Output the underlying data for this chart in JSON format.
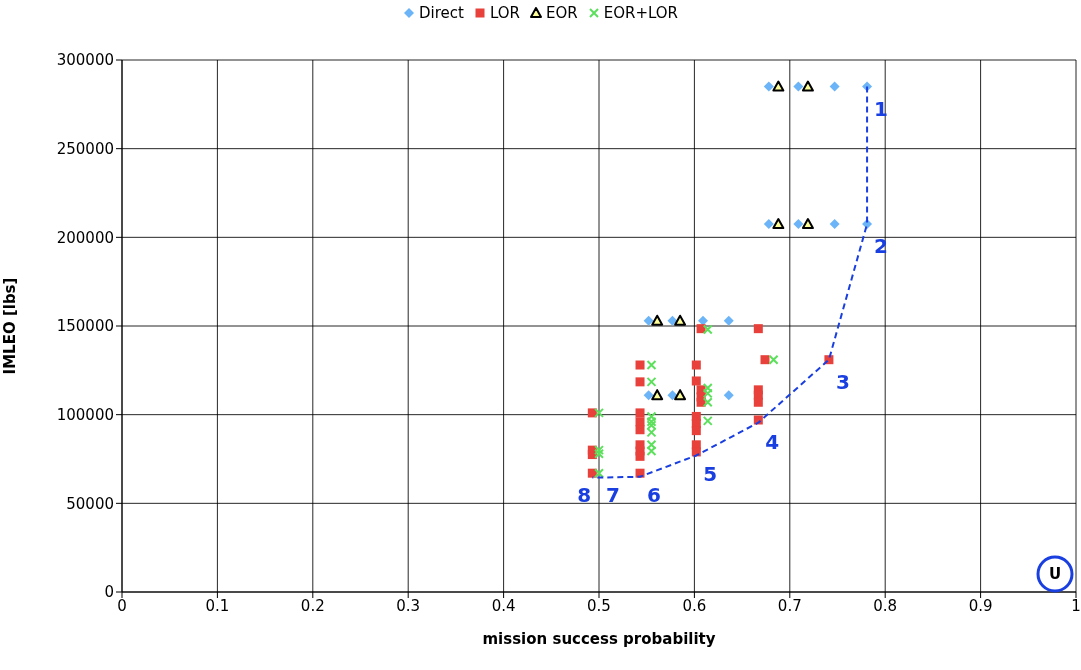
{
  "chart_data": {
    "type": "scatter",
    "xlabel": "mission success probability",
    "ylabel": "IMLEO [lbs]",
    "xlim": [
      0,
      1
    ],
    "xticks": [
      0,
      0.1,
      0.2,
      0.3,
      0.4,
      0.5,
      0.6,
      0.7,
      0.8,
      0.9,
      1
    ],
    "ylim": [
      0,
      300000
    ],
    "yticks": [
      0,
      50000,
      100000,
      150000,
      200000,
      250000,
      300000
    ],
    "grid": true,
    "legend": "top",
    "series": [
      {
        "name": "Direct",
        "color": "#6cb4f8",
        "marker": "diamond",
        "x": [
          0.678,
          0.709,
          0.747,
          0.781,
          0.678,
          0.709,
          0.747,
          0.781,
          0.552,
          0.577,
          0.609,
          0.636,
          0.552,
          0.577,
          0.636
        ],
        "values": [
          285000,
          285000,
          285000,
          285000,
          207500,
          207500,
          207500,
          207500,
          153000,
          153000,
          153000,
          153000,
          111000,
          111000,
          111000
        ]
      },
      {
        "name": "LOR",
        "color": "#e8403a",
        "marker": "square",
        "x": [
          0.493,
          0.493,
          0.493,
          0.493,
          0.543,
          0.543,
          0.543,
          0.543,
          0.543,
          0.543,
          0.543,
          0.543,
          0.543,
          0.602,
          0.602,
          0.602,
          0.602,
          0.602,
          0.602,
          0.602,
          0.607,
          0.607,
          0.607,
          0.607,
          0.667,
          0.674,
          0.667,
          0.667,
          0.667,
          0.667,
          0.741
        ],
        "values": [
          101000,
          80000,
          77500,
          67000,
          128000,
          118500,
          101000,
          96000,
          91500,
          83000,
          79500,
          76500,
          67000,
          128000,
          119000,
          99000,
          95000,
          91000,
          83000,
          79000,
          148500,
          114000,
          110000,
          107000,
          148500,
          131000,
          114000,
          111000,
          107000,
          97000,
          131000
        ]
      },
      {
        "name": "EOR",
        "color": "#000000",
        "marker": "triangle",
        "x": [
          0.688,
          0.719,
          0.688,
          0.719,
          0.561,
          0.585,
          0.561,
          0.585
        ],
        "values": [
          285000,
          285000,
          207500,
          207500,
          153000,
          153000,
          111000,
          111000
        ]
      },
      {
        "name": "EOR+LOR",
        "color": "#5ce05c",
        "marker": "cross",
        "x": [
          0.5,
          0.5,
          0.5,
          0.5,
          0.555,
          0.555,
          0.555,
          0.555,
          0.555,
          0.555,
          0.555,
          0.555,
          0.614,
          0.614,
          0.614,
          0.614,
          0.614,
          0.683
        ],
        "values": [
          101000,
          80000,
          78000,
          67000,
          128000,
          118500,
          99000,
          96000,
          94000,
          90000,
          83000,
          79500,
          148000,
          115000,
          112000,
          107000,
          96500,
          131000
        ]
      },
      {
        "type": "line",
        "color": "#1a3fe0",
        "line_style": "dashed",
        "marker": "none",
        "x": [
          0.781,
          0.781,
          0.741,
          0.667,
          0.602,
          0.543,
          0.5,
          0.493
        ],
        "values": [
          285000,
          207500,
          131000,
          95500,
          77000,
          65000,
          64500,
          64500
        ]
      }
    ],
    "annotations": [
      {
        "text": "1",
        "x": 0.781,
        "y": 285000
      },
      {
        "text": "2",
        "x": 0.781,
        "y": 207500
      },
      {
        "text": "3",
        "x": 0.741,
        "y": 131000
      },
      {
        "text": "4",
        "x": 0.667,
        "y": 97000
      },
      {
        "text": "5",
        "x": 0.602,
        "y": 79000
      },
      {
        "text": "6",
        "x": 0.543,
        "y": 67000
      },
      {
        "text": "7",
        "x": 0.5,
        "y": 67000
      },
      {
        "text": "8",
        "x": 0.493,
        "y": 67000
      },
      "U"
    ]
  }
}
